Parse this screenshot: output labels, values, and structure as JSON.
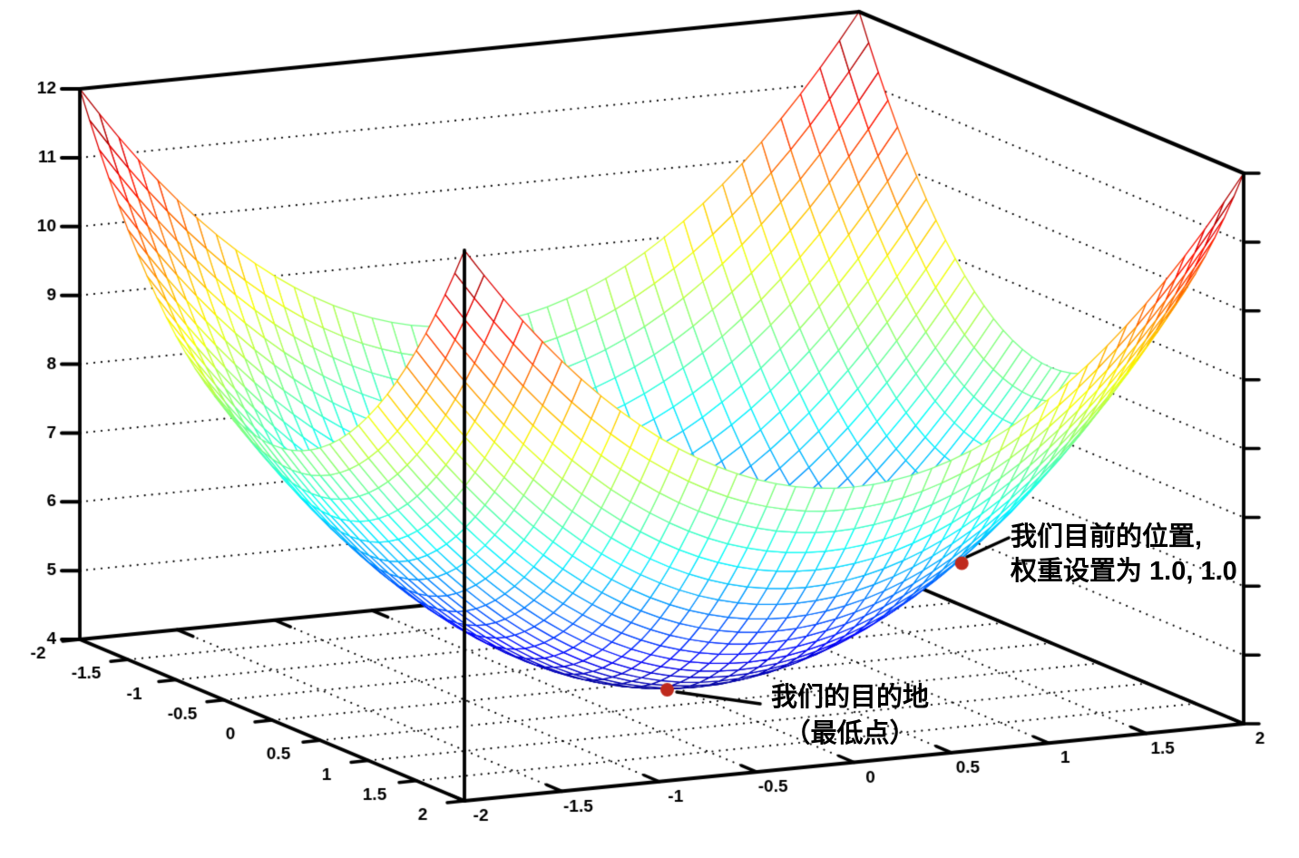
{
  "chart_data": {
    "type": "surface-wireframe-3d",
    "title": "",
    "function": "z = x^2 + y^2 + 4",
    "x_range": [
      -2,
      2
    ],
    "y_range": [
      -2,
      2
    ],
    "z_range": [
      4,
      12
    ],
    "mesh_step": 0.1,
    "colormap": "jet",
    "background": "#ffffff",
    "x_ticks": [
      -2,
      -1.5,
      -1,
      -0.5,
      0,
      0.5,
      1,
      1.5,
      2
    ],
    "x_tick_labels": [
      "-2",
      "-1.5",
      "-1",
      "-0.5",
      "0",
      "0.5",
      "1",
      "1.5",
      "2"
    ],
    "y_ticks": [
      -2,
      -1.5,
      -1,
      -0.5,
      0,
      0.5,
      1,
      1.5,
      2
    ],
    "y_tick_labels": [
      "-2",
      "-1.5",
      "-1",
      "-0.5",
      "0",
      "0.5",
      "1",
      "1.5",
      "2"
    ],
    "z_ticks": [
      4,
      5,
      6,
      7,
      8,
      9,
      10,
      11,
      12
    ],
    "z_tick_labels": [
      "4",
      "5",
      "6",
      "7",
      "8",
      "9",
      "10",
      "11",
      "12"
    ],
    "grid": {
      "floor_step": 0.5,
      "wall_z_lines": [
        5,
        6,
        7,
        8,
        9,
        10,
        11
      ],
      "style": "dotted"
    },
    "colors": {
      "axis": "#000000",
      "grid_dots": "#000000",
      "marker": "#bf2a1d",
      "leader": "#000000"
    },
    "markers": [
      {
        "id": "current_position",
        "x": 1.0,
        "y": 1.0,
        "z": 6.0
      },
      {
        "id": "destination",
        "x": 0.0,
        "y": 0.0,
        "z": 4.0
      }
    ]
  },
  "annotations": {
    "current_position": {
      "line1": "我们目前的位置,",
      "line2": "权重设置为 1.0, 1.0"
    },
    "destination": {
      "line1": "我们的目的地",
      "line2": "（最低点）"
    }
  }
}
